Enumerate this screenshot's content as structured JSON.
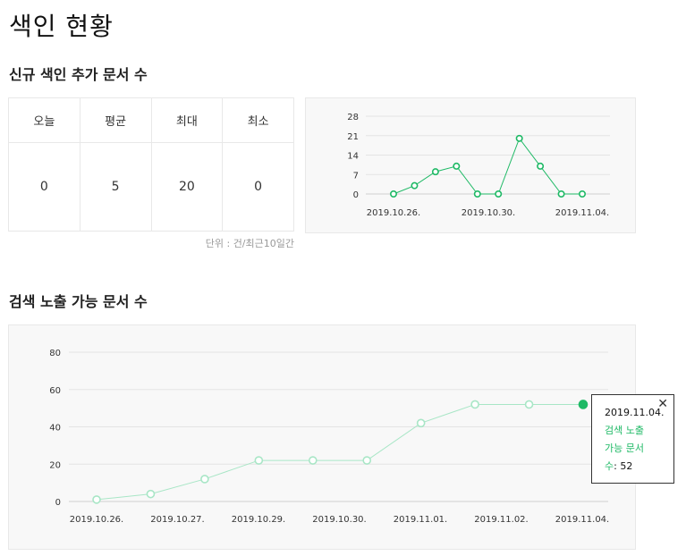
{
  "page_title": "색인 현황",
  "section1": {
    "title": "신규 색인 추가 문서 수",
    "stats_headers": [
      "오늘",
      "평균",
      "최대",
      "최소"
    ],
    "stats_values": [
      "0",
      "5",
      "20",
      "0"
    ],
    "unit_note": "단위 : 건/최근10일간"
  },
  "section2": {
    "title": "검색 노출 가능 문서 수"
  },
  "tooltip": {
    "date": "2019.11.04.",
    "series_label": "검색 노출 가능 문서 수",
    "value": "52",
    "close_icon": "close-icon"
  },
  "colors": {
    "line_primary": "#1eb965",
    "line_light": "#a8e6c6",
    "grid": "#e4e4e4",
    "panel_bg": "#f8f8f8"
  },
  "chart_data": [
    {
      "type": "line",
      "x": [
        "2019.10.26.",
        "2019.10.27.",
        "2019.10.28.",
        "2019.10.29.",
        "2019.10.30.",
        "2019.10.31.",
        "2019.11.01.",
        "2019.11.02.",
        "2019.11.03.",
        "2019.11.04."
      ],
      "x_tick_labels": [
        "2019.10.26.",
        "2019.10.30.",
        "2019.11.04."
      ],
      "x_tick_indices": [
        0,
        4,
        9
      ],
      "values": [
        0,
        3,
        8,
        10,
        0,
        0,
        20,
        10,
        0,
        0
      ],
      "yticks": [
        0,
        7,
        14,
        21,
        28
      ],
      "ylim": [
        0,
        28
      ],
      "grid": true,
      "title": "",
      "xlabel": "",
      "ylabel": ""
    },
    {
      "type": "line",
      "x": [
        "2019.10.26.",
        "2019.10.27.",
        "2019.10.28.",
        "2019.10.29.",
        "2019.10.30.",
        "2019.10.31.",
        "2019.11.01.",
        "2019.11.02.",
        "2019.11.03.",
        "2019.11.04."
      ],
      "x_tick_labels": [
        "2019.10.26.",
        "2019.10.27.",
        "2019.10.29.",
        "2019.10.30.",
        "2019.11.01.",
        "2019.11.02.",
        "2019.11.04."
      ],
      "values": [
        1,
        4,
        12,
        22,
        22,
        22,
        42,
        52,
        52,
        52
      ],
      "highlighted": "2019.11.04.",
      "yticks": [
        0,
        20,
        40,
        60,
        80
      ],
      "ylim": [
        0,
        80
      ],
      "grid": true,
      "title": "",
      "xlabel": "",
      "ylabel": ""
    }
  ]
}
